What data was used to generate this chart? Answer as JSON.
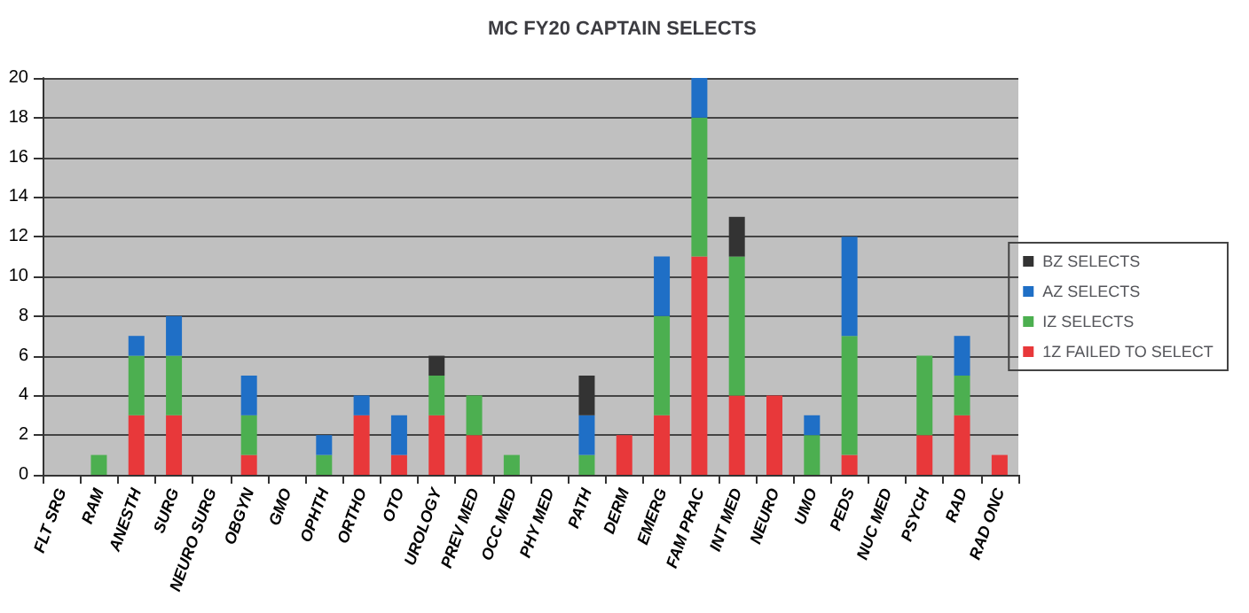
{
  "chart_data": {
    "type": "bar",
    "title": "MC FY20 CAPTAIN SELECTS",
    "stacked": true,
    "categories": [
      "FLT SRG",
      "RAM",
      "ANESTH",
      "SURG",
      "NEURO SURG",
      "OBGYN",
      "GMO",
      "OPHTH",
      "ORTHO",
      "OTO",
      "UROLOGY",
      "PREV MED",
      "OCC MED",
      "PHY MED",
      "PATH",
      "DERM",
      "EMERG",
      "FAM PRAC",
      "INT MED",
      "NEURO",
      "UMO",
      "PEDS",
      "NUC MED",
      "PSYCH",
      "RAD",
      "RAD ONC"
    ],
    "series": [
      {
        "name": "1Z FAILED TO SELECT",
        "color": "#e8383a",
        "values": [
          0,
          0,
          3,
          3,
          0,
          1,
          0,
          0,
          3,
          1,
          3,
          2,
          0,
          0,
          0,
          2,
          3,
          11,
          4,
          4,
          0,
          1,
          0,
          2,
          3,
          1
        ]
      },
      {
        "name": "IZ SELECTS",
        "color": "#4caf50",
        "values": [
          0,
          1,
          3,
          3,
          0,
          2,
          0,
          1,
          0,
          0,
          2,
          2,
          1,
          0,
          1,
          0,
          5,
          7,
          7,
          0,
          2,
          6,
          0,
          4,
          2,
          0
        ]
      },
      {
        "name": "AZ SELECTS",
        "color": "#1f6fc6",
        "values": [
          0,
          0,
          1,
          2,
          0,
          2,
          0,
          1,
          1,
          2,
          0,
          0,
          0,
          0,
          2,
          0,
          3,
          2,
          0,
          0,
          1,
          5,
          0,
          0,
          2,
          0
        ]
      },
      {
        "name": "BZ SELECTS",
        "color": "#333333",
        "values": [
          0,
          0,
          0,
          0,
          0,
          0,
          0,
          0,
          0,
          0,
          1,
          0,
          0,
          0,
          2,
          0,
          0,
          0,
          2,
          0,
          0,
          0,
          0,
          0,
          0,
          0
        ]
      }
    ],
    "ylim": [
      0,
      20
    ],
    "yticks": [
      0,
      2,
      4,
      6,
      8,
      10,
      12,
      14,
      16,
      18,
      20
    ],
    "grid": "y",
    "legend": "right"
  }
}
